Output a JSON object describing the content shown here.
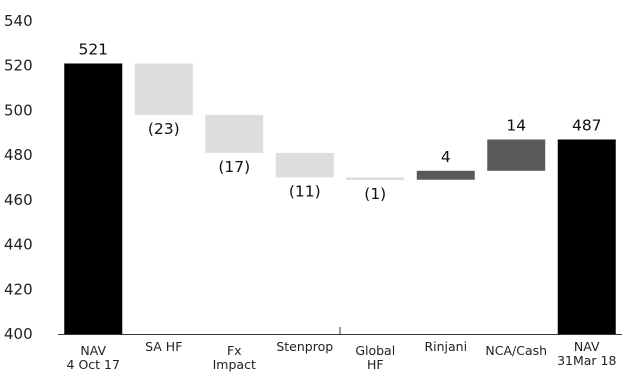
{
  "chart_data": {
    "type": "bar",
    "subtype": "waterfall",
    "title": "",
    "xlabel": "",
    "ylabel": "",
    "ylim": [
      400,
      540
    ],
    "yticks": [
      "400",
      "420",
      "440",
      "460",
      "480",
      "500",
      "520",
      "540"
    ],
    "categories": [
      [
        "NAV",
        "4 Oct 17"
      ],
      [
        "SA HF"
      ],
      [
        "Fx",
        "Impact"
      ],
      [
        "Stenprop"
      ],
      [
        "Global",
        "HF"
      ],
      [
        "Rinjani"
      ],
      [
        "NCA/Cash"
      ],
      [
        "NAV",
        "31Mar 18"
      ]
    ],
    "bars": [
      {
        "start": 400,
        "end": 521,
        "label": "521",
        "kind": "total"
      },
      {
        "start": 521,
        "end": 498,
        "label": "(23)",
        "kind": "decrease"
      },
      {
        "start": 498,
        "end": 481,
        "label": "(17)",
        "kind": "decrease"
      },
      {
        "start": 481,
        "end": 470,
        "label": "(11)",
        "kind": "decrease"
      },
      {
        "start": 470,
        "end": 469,
        "label": "(1)",
        "kind": "decrease"
      },
      {
        "start": 469,
        "end": 473,
        "label": "4",
        "kind": "increase"
      },
      {
        "start": 473,
        "end": 487,
        "label": "14",
        "kind": "increase"
      },
      {
        "start": 400,
        "end": 487,
        "label": "487",
        "kind": "total"
      }
    ],
    "colors": {
      "total": "#000000",
      "decrease": "#dddddd",
      "increase": "#5a5a5a",
      "axis": "#333333"
    }
  }
}
